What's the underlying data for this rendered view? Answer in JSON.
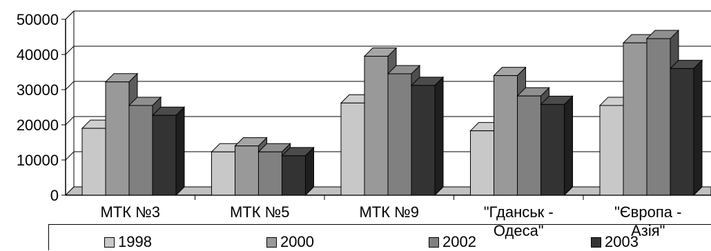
{
  "chart_data": {
    "type": "bar",
    "style": "3d-clustered-column",
    "categories": [
      "МТК №3",
      "МТК №5",
      "МТК №9",
      "\"Гданськ - Одеса\"",
      "\"Європа - Азія\""
    ],
    "category_lines": [
      [
        "МТК №3"
      ],
      [
        "МТК №5"
      ],
      [
        "МТК №9"
      ],
      [
        "\"Гданськ -",
        "Одеса\""
      ],
      [
        "\"Європа -",
        "Азія\""
      ]
    ],
    "series": [
      {
        "name": "1998",
        "color": "#c8c8c8",
        "values": [
          19000,
          12300,
          26200,
          18300,
          25500
        ]
      },
      {
        "name": "2000",
        "color": "#999999",
        "values": [
          32200,
          14000,
          39500,
          34000,
          43300
        ]
      },
      {
        "name": "2002",
        "color": "#808080",
        "values": [
          25500,
          12300,
          34500,
          28200,
          44500
        ]
      },
      {
        "name": "2003",
        "color": "#333333",
        "values": [
          22700,
          11200,
          31200,
          25800,
          36000
        ]
      }
    ],
    "y_ticks": [
      "0",
      "10000",
      "20000",
      "30000",
      "40000",
      "50000"
    ],
    "ylim": [
      0,
      50000
    ],
    "grid": true,
    "legend": "bottom"
  }
}
